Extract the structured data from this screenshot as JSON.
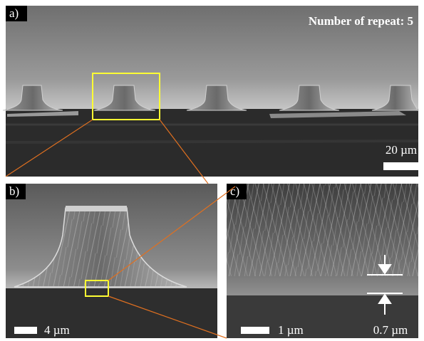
{
  "panels": [
    {
      "label": "a)",
      "annotation": "Number of repeat: 5",
      "scale_bar": "20 µm"
    },
    {
      "label": "b)",
      "scale_bar": "4 µm"
    },
    {
      "label": "c)",
      "scale_bar": "1 µm",
      "thickness": "0.7 µm"
    }
  ]
}
